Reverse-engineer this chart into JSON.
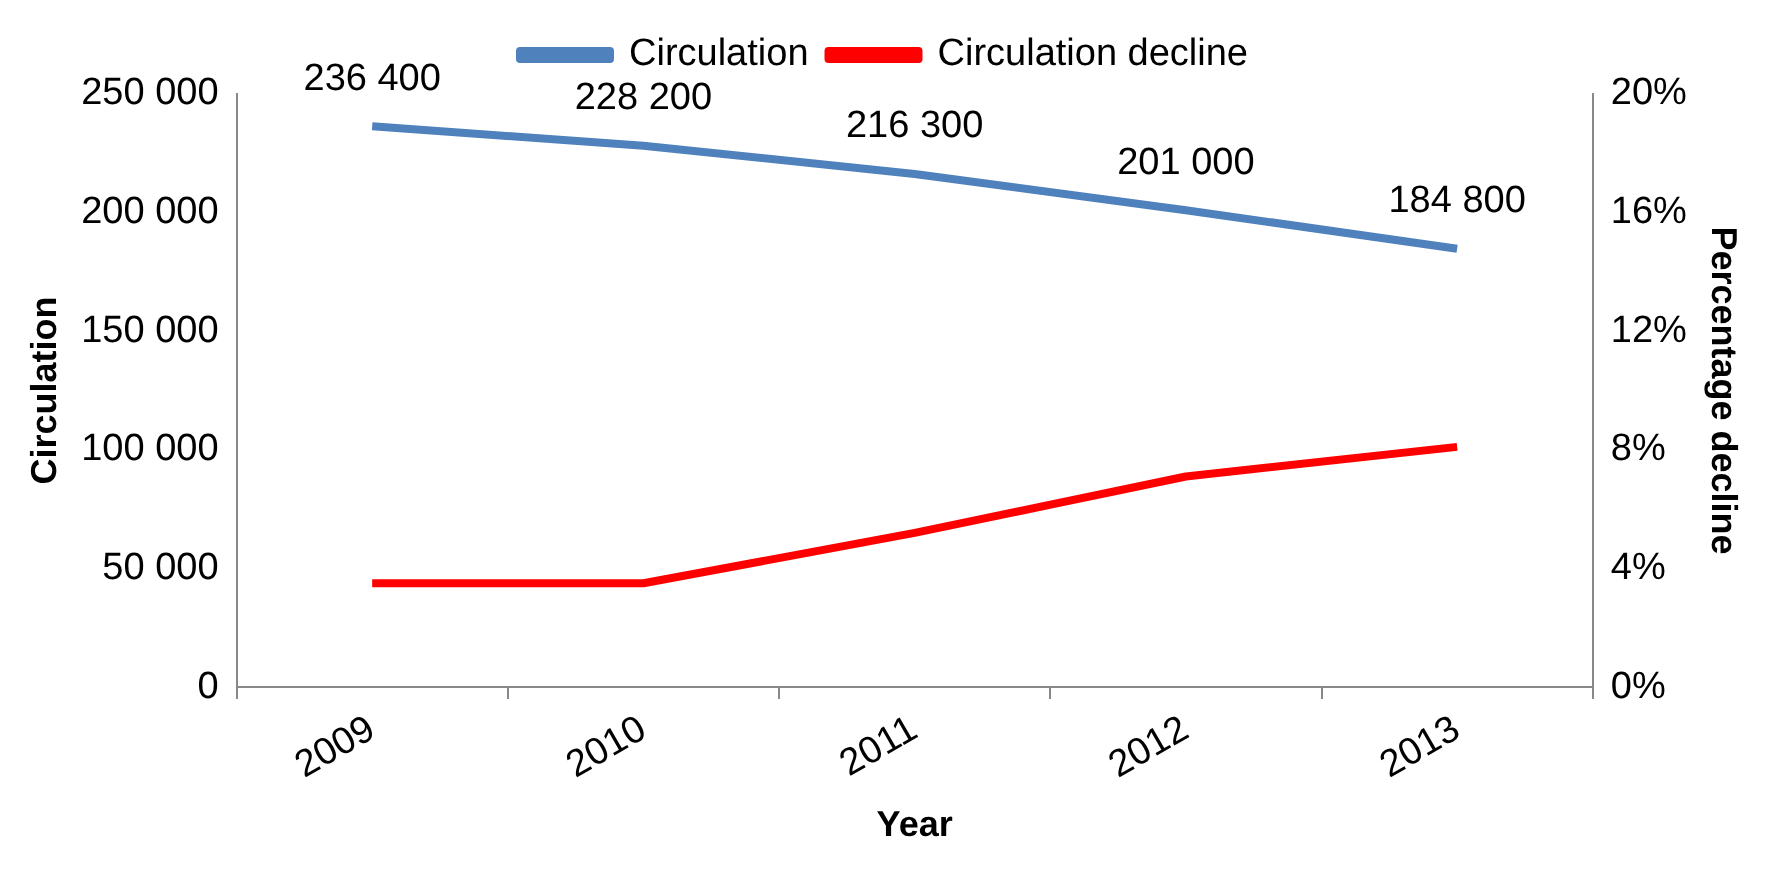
{
  "chart_data": {
    "type": "line",
    "xlabel": "Year",
    "ylabel": "Circulation",
    "y2label": "Percentage decline",
    "categories": [
      "2009",
      "2010",
      "2011",
      "2012",
      "2013"
    ],
    "series": [
      {
        "name": "Circulation",
        "color": "#4f81bd",
        "values": [
          236400,
          228200,
          216300,
          201000,
          184800
        ],
        "value_labels": [
          "236 400",
          "228 200",
          "216 300",
          "201 000",
          "184 800"
        ]
      },
      {
        "name": "Circulation decline",
        "color": "#ff0000",
        "axis": "y2",
        "values": [
          3.5,
          3.5,
          5.2,
          7.1,
          8.1
        ]
      }
    ],
    "ylim": [
      0,
      250000
    ],
    "yticks": [
      {
        "value": 0,
        "label": "0"
      },
      {
        "value": 50000,
        "label": "50 000"
      },
      {
        "value": 100000,
        "label": "100 000"
      },
      {
        "value": 150000,
        "label": "150 000"
      },
      {
        "value": 200000,
        "label": "200 000"
      },
      {
        "value": 250000,
        "label": "250 000"
      }
    ],
    "y2lim": [
      0,
      20
    ],
    "y2ticks": [
      {
        "value": 0,
        "label": "0%"
      },
      {
        "value": 4,
        "label": "4%"
      },
      {
        "value": 8,
        "label": "8%"
      },
      {
        "value": 12,
        "label": "12%"
      },
      {
        "value": 16,
        "label": "16%"
      },
      {
        "value": 20,
        "label": "20%"
      }
    ],
    "legend": "top",
    "grid": false,
    "marker": "none"
  }
}
